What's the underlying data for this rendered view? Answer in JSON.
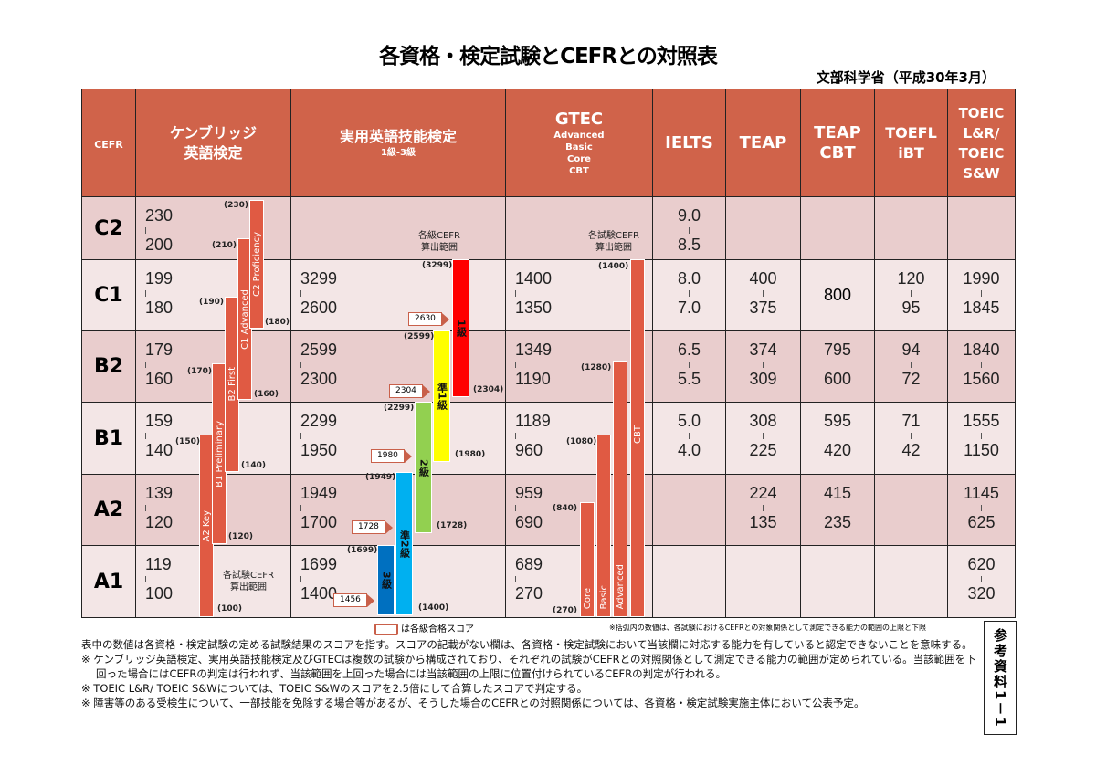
{
  "title": "各資格・検定試験とCEFRとの対照表",
  "subtitle": "文部科学省（平成30年3月）",
  "headers": {
    "cefr": "CEFR",
    "cambridge": [
      "ケンブリッジ",
      "英語検定"
    ],
    "eiken": {
      "title": "実用英語技能検定",
      "sub": "1級-3級"
    },
    "gtec": {
      "title": "GTEC",
      "subs": [
        "Advanced",
        "Basic",
        "Core",
        "CBT"
      ]
    },
    "ielts": "IELTS",
    "teap": "TEAP",
    "teapcbt": [
      "TEAP",
      "CBT"
    ],
    "toefl": [
      "TOEFL",
      "iBT"
    ],
    "toeic": [
      "TOEIC",
      "L&R/",
      "TOEIC",
      "S&W"
    ]
  },
  "rows": [
    {
      "level": "C2",
      "cambridge": [
        "230",
        "200"
      ],
      "eiken": null,
      "gtec": null,
      "ielts": [
        "9.0",
        "8.5"
      ],
      "teap": null,
      "teapcbt": null,
      "toefl": null,
      "toeic": null
    },
    {
      "level": "C1",
      "cambridge": [
        "199",
        "180"
      ],
      "eiken": [
        "3299",
        "2600"
      ],
      "gtec": [
        "1400",
        "1350"
      ],
      "ielts": [
        "8.0",
        "7.0"
      ],
      "teap": [
        "400",
        "375"
      ],
      "teapcbt": [
        "800"
      ],
      "toefl": [
        "120",
        "95"
      ],
      "toeic": [
        "1990",
        "1845"
      ]
    },
    {
      "level": "B2",
      "cambridge": [
        "179",
        "160"
      ],
      "eiken": [
        "2599",
        "2300"
      ],
      "gtec": [
        "1349",
        "1190"
      ],
      "ielts": [
        "6.5",
        "5.5"
      ],
      "teap": [
        "374",
        "309"
      ],
      "teapcbt": [
        "795",
        "600"
      ],
      "toefl": [
        "94",
        "72"
      ],
      "toeic": [
        "1840",
        "1560"
      ]
    },
    {
      "level": "B1",
      "cambridge": [
        "159",
        "140"
      ],
      "eiken": [
        "2299",
        "1950"
      ],
      "gtec": [
        "1189",
        "960"
      ],
      "ielts": [
        "5.0",
        "4.0"
      ],
      "teap": [
        "308",
        "225"
      ],
      "teapcbt": [
        "595",
        "420"
      ],
      "toefl": [
        "71",
        "42"
      ],
      "toeic": [
        "1555",
        "1150"
      ]
    },
    {
      "level": "A2",
      "cambridge": [
        "139",
        "120"
      ],
      "eiken": [
        "1949",
        "1700"
      ],
      "gtec": [
        "959",
        "690"
      ],
      "ielts": null,
      "teap": [
        "224",
        "135"
      ],
      "teapcbt": [
        "415",
        "235"
      ],
      "toefl": null,
      "toeic": [
        "1145",
        "625"
      ]
    },
    {
      "level": "A1",
      "cambridge": [
        "119",
        "100"
      ],
      "eiken": [
        "1699",
        "1400"
      ],
      "gtec": [
        "689",
        "270"
      ],
      "ielts": null,
      "teap": null,
      "teapcbt": null,
      "toefl": null,
      "toeic": [
        "620",
        "320"
      ]
    }
  ],
  "range_note": [
    "各試験CEFR",
    "算出範囲"
  ],
  "eiken_range_note": [
    "各級CEFR",
    "算出範囲"
  ],
  "cambridge_bars": [
    {
      "label": "A2 Key",
      "upper": "(150)",
      "lower": "(100)"
    },
    {
      "label": "B1 Preliminary",
      "upper": "(170)",
      "lower": "(120)"
    },
    {
      "label": "B2 First",
      "upper": "(190)",
      "lower": "(140)"
    },
    {
      "label": "C1 Advanced",
      "upper": "(210)",
      "lower": "(160)"
    },
    {
      "label": "C2 Proficiency",
      "upper": "(230)",
      "lower": "(180)"
    }
  ],
  "eiken_bars": [
    {
      "label": "3級",
      "upper": "(1699)",
      "lower": "",
      "pass": "1456",
      "color": "#0070c0"
    },
    {
      "label": "準2級",
      "upper": "(1949)",
      "lower": "(1400)",
      "pass": "1728",
      "color": "#00b0f0"
    },
    {
      "label": "2級",
      "upper": "(2299)",
      "lower": "(1728)",
      "pass": "1980",
      "color": "#92d050"
    },
    {
      "label": "準1級",
      "upper": "(2599)",
      "lower": "(1980)",
      "pass": "2304",
      "color": "#ffff00"
    },
    {
      "label": "1級",
      "upper": "(3299)",
      "lower": "(2304)",
      "pass": "2630",
      "color": "#ff0000"
    }
  ],
  "gtec_bars": [
    {
      "label": "Core",
      "upper": "(840)",
      "lower": "(270)"
    },
    {
      "label": "Basic",
      "upper": "(1080)"
    },
    {
      "label": "Advanced",
      "upper": "(1280)"
    },
    {
      "label": "CBT",
      "upper": "(1400)"
    }
  ],
  "bar_color": "#e05a43",
  "header_color": "#d0634a",
  "legend_pass": "は各級合格スコア",
  "legend_paren": "※括弧内の数値は、各試験におけるCEFRとの対象関係として測定できる能力の範囲の上限と下限",
  "footnotes": [
    "表中の数値は各資格・検定試験の定める試験結果のスコアを指す。スコアの記載がない欄は、各資格・検定試験において当該欄に対応する能力を有していると認定できないことを意味する。",
    "※ ケンブリッジ英語検定、実用英語技能検定及びGTECは複数の試験から構成されており、それぞれの試験がCEFRとの対照関係として測定できる能力の範囲が定められている。当該範囲を下回った場合にはCEFRの判定は行われず、当該範囲を上回った場合には当該範囲の上限に位置付けられているCEFRの判定が行われる。",
    "※ TOEIC L&R/ TOEIC S&Wについては、TOEIC S&Wのスコアを2.5倍にして合算したスコアで判定する。",
    "※ 障害等のある受検生について、一部技能を免除する場合等があるが、そうした場合のCEFRとの対照関係については、各資格・検定試験実施主体において公表予定。"
  ],
  "side_label": "参考資料1－1"
}
